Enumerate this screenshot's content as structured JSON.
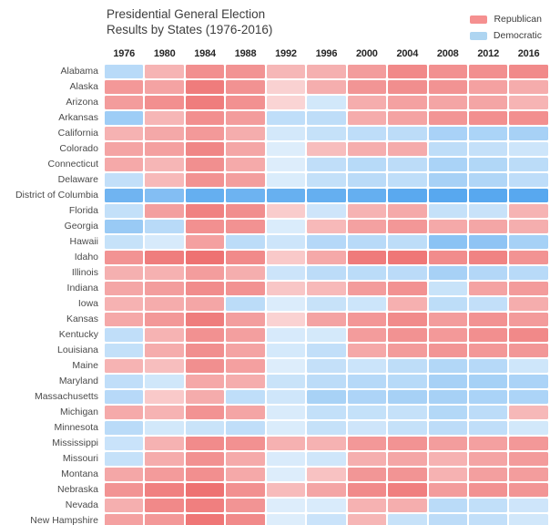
{
  "title": {
    "line1": "Presidential General Election",
    "line2": "Results by States (1976-2016)"
  },
  "legend": {
    "items": [
      {
        "label": "Republican",
        "color": "#f59090"
      },
      {
        "label": "Democratic",
        "color": "#aed5f1"
      }
    ]
  },
  "chart_data": {
    "type": "heatmap",
    "title": "Presidential General Election Results by States (1976-2016)",
    "legend_position": "top-right",
    "cell_format": "party letter (R=Republican red, D=Democratic blue) + winner vote share percent; share drives color intensity",
    "years": [
      "1976",
      "1980",
      "1984",
      "1988",
      "1992",
      "1996",
      "2000",
      "2004",
      "2008",
      "2012",
      "2016"
    ],
    "color_scale": {
      "R": {
        "domain": [
          30,
          70
        ],
        "min_t": 0.06,
        "light": [
          253,
          238,
          238
        ],
        "strong": [
          238,
          114,
          114
        ]
      },
      "D": {
        "domain": [
          40,
          90
        ],
        "min_t": 0.05,
        "light": [
          228,
          241,
          252
        ],
        "strong": [
          88,
          168,
          239
        ]
      }
    },
    "rows": [
      {
        "state": "Alabama",
        "results": [
          "D55.7",
          "R48.8",
          "R60.5",
          "R59.2",
          "R47.6",
          "R50.1",
          "R56.5",
          "R62.5",
          "R60.3",
          "R60.6",
          "R62.1"
        ]
      },
      {
        "state": "Alaska",
        "results": [
          "R57.9",
          "R54.3",
          "R66.7",
          "R59.6",
          "R39.5",
          "R50.8",
          "R58.6",
          "R61.1",
          "R59.4",
          "R54.8",
          "R51.3"
        ]
      },
      {
        "state": "Arizona",
        "results": [
          "R56.4",
          "R60.6",
          "R66.4",
          "R60.0",
          "R38.5",
          "D46.5",
          "R51.0",
          "R54.9",
          "R53.6",
          "R53.7",
          "R48.7"
        ]
      },
      {
        "state": "Arkansas",
        "results": [
          "D65.0",
          "R48.1",
          "R60.5",
          "R56.4",
          "D53.2",
          "D53.7",
          "R51.3",
          "R54.3",
          "R58.7",
          "R60.6",
          "R60.6"
        ]
      },
      {
        "state": "California",
        "results": [
          "R49.3",
          "R52.7",
          "R57.5",
          "R51.1",
          "D46.0",
          "D51.1",
          "D53.4",
          "D54.3",
          "D61.0",
          "D60.2",
          "D61.7"
        ]
      },
      {
        "state": "Colorado",
        "results": [
          "R54.0",
          "R55.1",
          "R63.4",
          "R53.1",
          "D40.1",
          "R45.8",
          "R50.8",
          "R51.7",
          "D53.7",
          "D51.5",
          "D48.2"
        ]
      },
      {
        "state": "Connecticut",
        "results": [
          "R52.1",
          "R48.2",
          "R60.7",
          "R52.0",
          "D42.2",
          "D52.8",
          "D55.9",
          "D54.3",
          "D60.6",
          "D58.1",
          "D54.6"
        ]
      },
      {
        "state": "Delaware",
        "results": [
          "D52.0",
          "R47.2",
          "R59.8",
          "R55.9",
          "D43.5",
          "D51.8",
          "D55.0",
          "D53.3",
          "D61.9",
          "D58.6",
          "D53.4"
        ]
      },
      {
        "state": "District of Columbia",
        "results": [
          "D81.6",
          "D74.8",
          "D85.4",
          "D82.6",
          "D84.6",
          "D85.2",
          "D85.2",
          "D89.2",
          "D92.5",
          "D90.9",
          "D90.9"
        ]
      },
      {
        "state": "Florida",
        "results": [
          "D51.9",
          "R55.5",
          "R65.3",
          "R60.9",
          "R40.9",
          "D48.0",
          "R48.9",
          "R52.1",
          "D51.0",
          "D50.0",
          "R49.0"
        ]
      },
      {
        "state": "Georgia",
        "results": [
          "D66.7",
          "D55.8",
          "R60.2",
          "R59.8",
          "D43.5",
          "R47.0",
          "R54.7",
          "R58.0",
          "R52.2",
          "R53.3",
          "R50.8"
        ]
      },
      {
        "state": "Hawaii",
        "results": [
          "D50.6",
          "D44.8",
          "R55.1",
          "D54.3",
          "D48.1",
          "D56.9",
          "D55.8",
          "D54.0",
          "D71.8",
          "D70.5",
          "D62.2"
        ]
      },
      {
        "state": "Idaho",
        "results": [
          "R59.3",
          "R66.5",
          "R72.4",
          "R62.1",
          "R42.0",
          "R52.2",
          "R67.2",
          "R68.4",
          "R61.5",
          "R64.5",
          "R59.3"
        ]
      },
      {
        "state": "Illinois",
        "results": [
          "R50.1",
          "R49.7",
          "R56.2",
          "R50.7",
          "D48.6",
          "D54.3",
          "D54.6",
          "D54.8",
          "D61.9",
          "D57.6",
          "D55.8"
        ]
      },
      {
        "state": "Indiana",
        "results": [
          "R53.3",
          "R56.0",
          "R61.7",
          "R59.8",
          "R42.9",
          "R47.1",
          "R56.6",
          "R59.9",
          "D49.9",
          "R54.1",
          "R56.8"
        ]
      },
      {
        "state": "Iowa",
        "results": [
          "R49.5",
          "R51.3",
          "R53.3",
          "D54.7",
          "D43.3",
          "D50.3",
          "D48.5",
          "R49.9",
          "D53.9",
          "D52.0",
          "R51.1"
        ]
      },
      {
        "state": "Kansas",
        "results": [
          "R52.5",
          "R57.9",
          "R66.3",
          "R55.8",
          "R38.9",
          "R54.3",
          "R58.0",
          "R62.0",
          "R56.6",
          "R59.7",
          "R56.7"
        ]
      },
      {
        "state": "Kentucky",
        "results": [
          "D52.8",
          "R49.1",
          "R60.0",
          "R55.5",
          "D44.6",
          "D45.8",
          "R56.5",
          "R59.6",
          "R57.4",
          "R60.5",
          "R62.5"
        ]
      },
      {
        "state": "Louisiana",
        "results": [
          "D51.7",
          "R51.2",
          "R60.8",
          "R54.3",
          "D45.6",
          "D52.0",
          "R52.6",
          "R56.7",
          "R58.6",
          "R57.8",
          "R58.1"
        ]
      },
      {
        "state": "Maine",
        "results": [
          "R48.9",
          "R45.6",
          "R60.8",
          "R55.3",
          "D38.8",
          "D51.6",
          "D49.1",
          "D53.6",
          "D57.7",
          "D56.3",
          "D47.8"
        ]
      },
      {
        "state": "Maryland",
        "results": [
          "D52.8",
          "D47.1",
          "R52.5",
          "R51.1",
          "D49.8",
          "D54.3",
          "D56.6",
          "D55.9",
          "D61.9",
          "D62.0",
          "D60.3"
        ]
      },
      {
        "state": "Massachusetts",
        "results": [
          "D56.1",
          "R41.9",
          "R51.2",
          "D53.2",
          "D47.5",
          "D61.5",
          "D59.8",
          "D61.9",
          "D61.8",
          "D60.7",
          "D60.0"
        ]
      },
      {
        "state": "Michigan",
        "results": [
          "R51.8",
          "R49.0",
          "R59.2",
          "R53.6",
          "D43.8",
          "D51.7",
          "D51.3",
          "D51.2",
          "D57.4",
          "D54.2",
          "R47.5"
        ]
      },
      {
        "state": "Minnesota",
        "results": [
          "D54.9",
          "D46.5",
          "D49.7",
          "D52.9",
          "D43.5",
          "D51.1",
          "D47.9",
          "D51.1",
          "D54.1",
          "D52.7",
          "D46.4"
        ]
      },
      {
        "state": "Mississippi",
        "results": [
          "D49.6",
          "R49.4",
          "R61.9",
          "R59.9",
          "R49.7",
          "R49.2",
          "R57.6",
          "R59.4",
          "R56.2",
          "R55.3",
          "R57.9"
        ]
      },
      {
        "state": "Missouri",
        "results": [
          "D51.1",
          "R51.2",
          "R60.0",
          "R51.8",
          "D44.1",
          "D47.5",
          "R50.4",
          "R53.3",
          "R49.4",
          "R53.8",
          "R56.8"
        ]
      },
      {
        "state": "Montana",
        "results": [
          "R52.8",
          "R56.8",
          "R60.5",
          "R52.1",
          "D37.6",
          "R44.1",
          "R58.4",
          "R59.1",
          "R49.5",
          "R55.4",
          "R56.2"
        ]
      },
      {
        "state": "Nebraska",
        "results": [
          "R59.2",
          "R65.5",
          "R70.6",
          "R60.2",
          "R46.6",
          "R53.7",
          "R62.2",
          "R65.9",
          "R56.5",
          "R59.8",
          "R58.7"
        ]
      },
      {
        "state": "Nevada",
        "results": [
          "R50.2",
          "R62.5",
          "R65.8",
          "R58.9",
          "D37.4",
          "D43.9",
          "R49.5",
          "R50.5",
          "D55.1",
          "D52.4",
          "D47.9"
        ]
      },
      {
        "state": "New Hampshire",
        "results": [
          "R54.7",
          "R57.7",
          "R68.6",
          "R62.4",
          "D38.9",
          "D49.3",
          "R48.1",
          "D50.2",
          "D54.1",
          "D52.0",
          "D46.8"
        ]
      }
    ]
  }
}
